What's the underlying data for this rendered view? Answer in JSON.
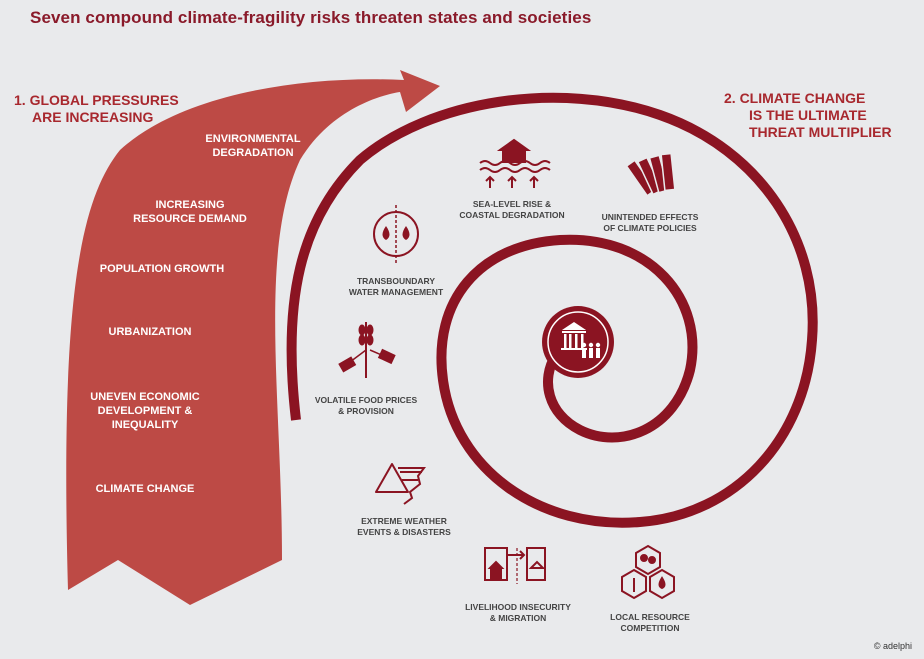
{
  "title": "Seven compound climate-fragility risks threaten states and societies",
  "left_heading": {
    "line1": "1. GLOBAL PRESSURES",
    "line2": "ARE INCREASING"
  },
  "right_heading": {
    "line1": "2.  CLIMATE CHANGE",
    "line2": "IS THE ULTIMATE",
    "line3": "THREAT MULTIPLIER"
  },
  "pressures": [
    {
      "line1": "ENVIRONMENTAL",
      "line2": "DEGRADATION"
    },
    {
      "line1": "INCREASING",
      "line2": "RESOURCE DEMAND"
    },
    {
      "line1": "POPULATION GROWTH"
    },
    {
      "line1": "URBANIZATION"
    },
    {
      "line1": "UNEVEN ECONOMIC",
      "line2": "DEVELOPMENT &",
      "line3": "INEQUALITY"
    },
    {
      "line1": "CLIMATE CHANGE"
    }
  ],
  "risks": [
    {
      "line1": "SEA-LEVEL RISE &",
      "line2": "COASTAL DEGRADATION",
      "icon": "flooded-house-icon"
    },
    {
      "line1": "UNINTENDED EFFECTS",
      "line2": "OF CLIMATE POLICIES",
      "icon": "falling-dominoes-icon"
    },
    {
      "line1": "TRANSBOUNDARY",
      "line2": "WATER MANAGEMENT",
      "icon": "water-drops-icon"
    },
    {
      "line1": "VOLATILE FOOD PRICES",
      "line2": "& PROVISION",
      "icon": "wheat-price-tag-icon"
    },
    {
      "line1": "EXTREME WEATHER",
      "line2": "EVENTS & DISASTERS",
      "icon": "tornado-icon"
    },
    {
      "line1": "LIVELIHOOD INSECURITY",
      "line2": "& MIGRATION",
      "icon": "migration-icon"
    },
    {
      "line1": "LOCAL RESOURCE",
      "line2": "COMPETITION",
      "icon": "resource-hexagons-icon"
    }
  ],
  "center_icon": "government-people-icon",
  "credit": "© adelphi",
  "colors": {
    "arrow": "#bd4a45",
    "spiral": "#8b1422",
    "title": "#8a1a2a",
    "heading": "#a8282e",
    "background": "#e9eaec"
  }
}
